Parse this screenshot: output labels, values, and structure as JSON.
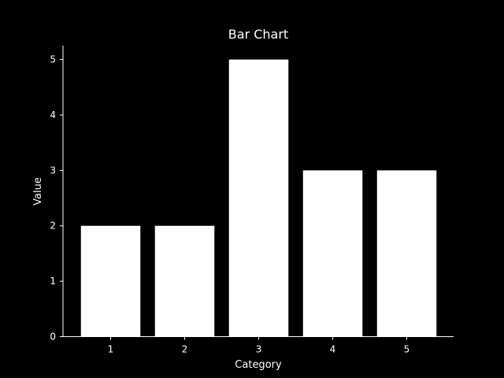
{
  "chart_data": {
    "type": "bar",
    "title": "Bar Chart",
    "xlabel": "Category",
    "ylabel": "Value",
    "categories": [
      "1",
      "2",
      "3",
      "4",
      "5"
    ],
    "values": [
      2,
      2,
      5,
      3,
      3
    ],
    "ylim": [
      0,
      5.25
    ],
    "yticks": [
      0,
      1,
      2,
      3,
      4,
      5
    ],
    "grid": false,
    "legend": "none",
    "background_color": "#000000",
    "bar_color": "#ffffff",
    "axis_color": "#ffffff",
    "text_color": "#ffffff"
  }
}
